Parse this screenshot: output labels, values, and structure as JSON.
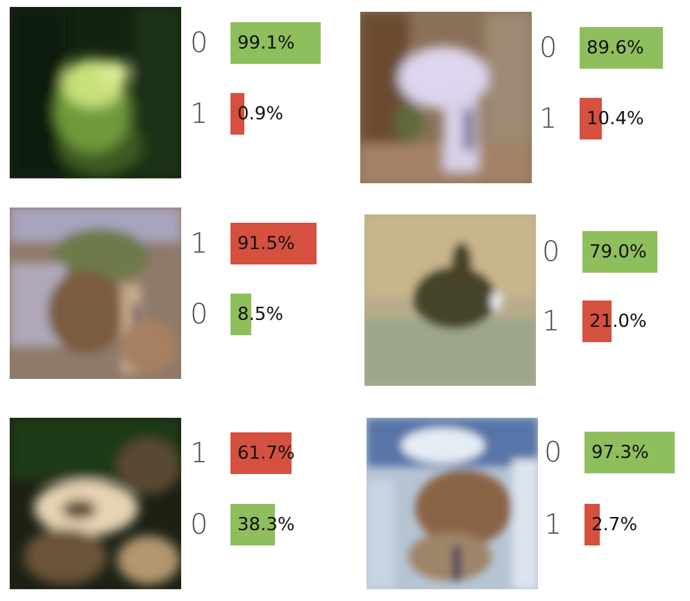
{
  "colors": {
    "green": "#8fbe5c",
    "red": "#d65040"
  },
  "panels": [
    {
      "image_icon": "blurry-image-green-blob",
      "rows": [
        {
          "label": "0",
          "percent": "99.1%",
          "value": 99.1,
          "color": "green"
        },
        {
          "label": "1",
          "percent": "0.9%",
          "value": 0.9,
          "color": "red"
        }
      ]
    },
    {
      "image_icon": "blurry-image-white-blob",
      "rows": [
        {
          "label": "0",
          "percent": "89.6%",
          "value": 89.6,
          "color": "green"
        },
        {
          "label": "1",
          "percent": "10.4%",
          "value": 10.4,
          "color": "red"
        }
      ]
    },
    {
      "image_icon": "blurry-image-purple-brown",
      "rows": [
        {
          "label": "1",
          "percent": "91.5%",
          "value": 91.5,
          "color": "red"
        },
        {
          "label": "0",
          "percent": "8.5%",
          "value": 8.5,
          "color": "green"
        }
      ]
    },
    {
      "image_icon": "blurry-image-dark-shape-on-tan",
      "rows": [
        {
          "label": "0",
          "percent": "79.0%",
          "value": 79.0,
          "color": "green"
        },
        {
          "label": "1",
          "percent": "21.0%",
          "value": 21.0,
          "color": "red"
        }
      ]
    },
    {
      "image_icon": "blurry-image-beige-blob-dark-bg",
      "rows": [
        {
          "label": "1",
          "percent": "61.7%",
          "value": 61.7,
          "color": "red"
        },
        {
          "label": "0",
          "percent": "38.3%",
          "value": 38.3,
          "color": "green"
        }
      ]
    },
    {
      "image_icon": "blurry-image-brown-on-blue",
      "rows": [
        {
          "label": "0",
          "percent": "97.3%",
          "value": 97.3,
          "color": "green"
        },
        {
          "label": "1",
          "percent": "2.7%",
          "value": 2.7,
          "color": "red"
        }
      ]
    }
  ]
}
